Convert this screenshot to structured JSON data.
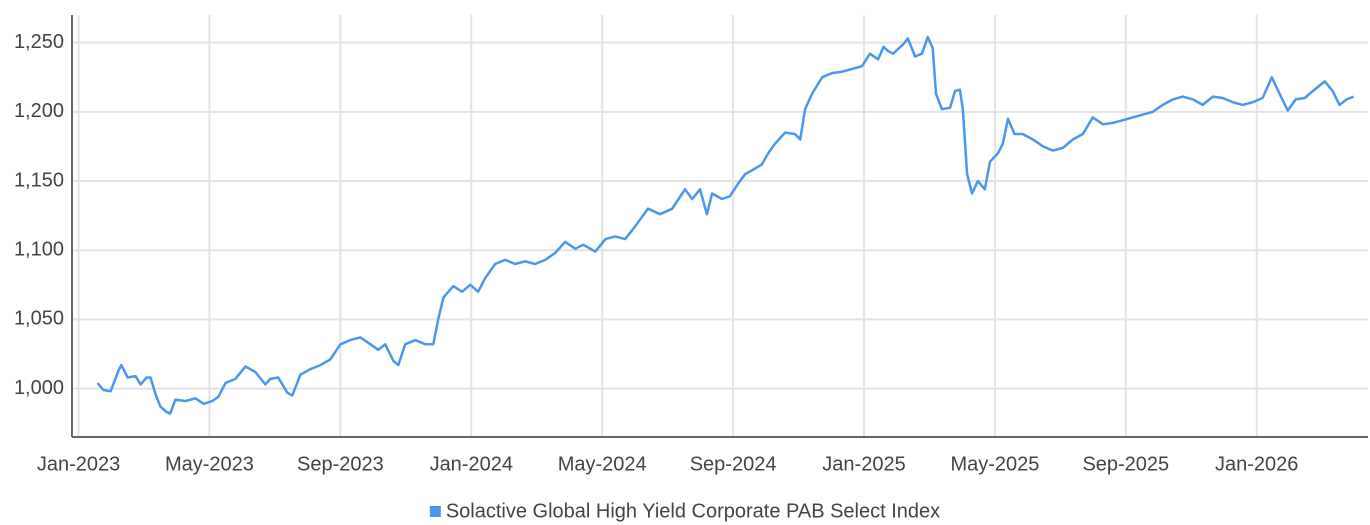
{
  "chart_data": {
    "type": "line",
    "x": [
      0.58,
      0.76,
      0.98,
      1.22,
      1.31,
      1.5,
      1.74,
      1.9,
      2.08,
      2.2,
      2.35,
      2.5,
      2.69,
      2.8,
      2.96,
      3.27,
      3.57,
      3.82,
      4.09,
      4.27,
      4.49,
      4.79,
      5.1,
      5.4,
      5.71,
      5.86,
      6.1,
      6.38,
      6.53,
      6.78,
      7.08,
      7.39,
      7.69,
      8.0,
      8.3,
      8.61,
      8.92,
      9.16,
      9.37,
      9.62,
      9.77,
      9.98,
      10.29,
      10.6,
      10.84,
      11.0,
      11.15,
      11.45,
      11.72,
      11.97,
      12.21,
      12.43,
      12.73,
      13.04,
      13.34,
      13.65,
      13.95,
      14.26,
      14.56,
      14.87,
      15.18,
      15.42,
      15.79,
      16.1,
      16.4,
      16.7,
      17.0,
      17.4,
      17.77,
      18.14,
      18.53,
      18.75,
      18.99,
      19.2,
      19.36,
      19.66,
      19.9,
      20.15,
      20.37,
      20.67,
      20.88,
      21.07,
      21.28,
      21.59,
      21.89,
      22.05,
      22.2,
      22.41,
      22.72,
      23.02,
      23.33,
      23.63,
      23.94,
      24.18,
      24.43,
      24.6,
      24.73,
      24.89,
      25.2,
      25.34,
      25.56,
      25.77,
      25.95,
      26.1,
      26.2,
      26.38,
      26.63,
      26.78,
      26.93,
      27.02,
      27.15,
      27.3,
      27.48,
      27.69,
      27.85,
      28.09,
      28.24,
      28.4,
      28.6,
      28.85,
      29.16,
      29.47,
      29.77,
      30.08,
      30.38,
      30.69,
      30.99,
      31.3,
      31.6,
      31.91,
      32.21,
      32.52,
      32.82,
      33.13,
      33.44,
      33.74,
      34.05,
      34.35,
      34.66,
      34.96,
      35.27,
      35.57,
      35.88,
      36.18,
      36.46,
      36.7,
      36.95,
      37.19,
      37.47,
      37.71,
      38.08,
      38.32,
      38.53,
      38.75,
      38.96
    ],
    "series": [
      {
        "name": "Solactive Global High Yield Corporate PAB Select Index",
        "color": "#4a97ef",
        "values": [
          1004,
          999,
          998,
          1013,
          1017,
          1008,
          1009,
          1003,
          1008,
          1008,
          996,
          987,
          983,
          982,
          992,
          991,
          993,
          989,
          991,
          994,
          1004,
          1007,
          1016,
          1012,
          1003,
          1007,
          1008,
          997,
          995,
          1010,
          1014,
          1017,
          1021,
          1032,
          1035,
          1037,
          1032,
          1028,
          1032,
          1020,
          1017,
          1032,
          1035,
          1032,
          1032,
          1051,
          1066,
          1074,
          1070,
          1075,
          1070,
          1080,
          1090,
          1093,
          1090,
          1092,
          1090,
          1093,
          1098,
          1106,
          1101,
          1104,
          1099,
          1108,
          1110,
          1108,
          1117,
          1130,
          1126,
          1130,
          1144,
          1137,
          1144,
          1126,
          1141,
          1137,
          1139,
          1148,
          1155,
          1159,
          1162,
          1170,
          1177,
          1185,
          1184,
          1180,
          1202,
          1213,
          1225,
          1228,
          1229,
          1231,
          1233,
          1242,
          1238,
          1247,
          1244,
          1242,
          1249,
          1253,
          1240,
          1242,
          1254,
          1246,
          1213,
          1202,
          1203,
          1215,
          1216,
          1202,
          1155,
          1141,
          1150,
          1144,
          1164,
          1170,
          1177,
          1195,
          1184,
          1184,
          1180,
          1175,
          1172,
          1174,
          1180,
          1184,
          1196,
          1191,
          1192,
          1194,
          1196,
          1198,
          1200,
          1205,
          1209,
          1211,
          1209,
          1205,
          1211,
          1210,
          1207,
          1205,
          1207,
          1210,
          1225,
          1213,
          1201,
          1209,
          1210,
          1215,
          1222,
          1215,
          1205,
          1209,
          1211
        ]
      }
    ],
    "xlim": [
      -0.2,
      39.4
    ],
    "xticks": [
      {
        "value": 0,
        "label": "Jan-2023"
      },
      {
        "value": 4,
        "label": "May-2023"
      },
      {
        "value": 8,
        "label": "Sep-2023"
      },
      {
        "value": 12,
        "label": "Jan-2024"
      },
      {
        "value": 16,
        "label": "May-2024"
      },
      {
        "value": 20,
        "label": "Sep-2024"
      },
      {
        "value": 24,
        "label": "Jan-2025"
      },
      {
        "value": 28,
        "label": "May-2025"
      },
      {
        "value": 32,
        "label": "Sep-2025"
      },
      {
        "value": 36,
        "label": "Jan-2026"
      }
    ],
    "ylim": [
      965,
      1270
    ],
    "yticks": [
      {
        "value": 1000,
        "label": "1,000"
      },
      {
        "value": 1050,
        "label": "1,050"
      },
      {
        "value": 1100,
        "label": "1,100"
      },
      {
        "value": 1150,
        "label": "1,150"
      },
      {
        "value": 1200,
        "label": "1,200"
      },
      {
        "value": 1250,
        "label": "1,250"
      }
    ],
    "grid": true,
    "legend": "bottom"
  }
}
